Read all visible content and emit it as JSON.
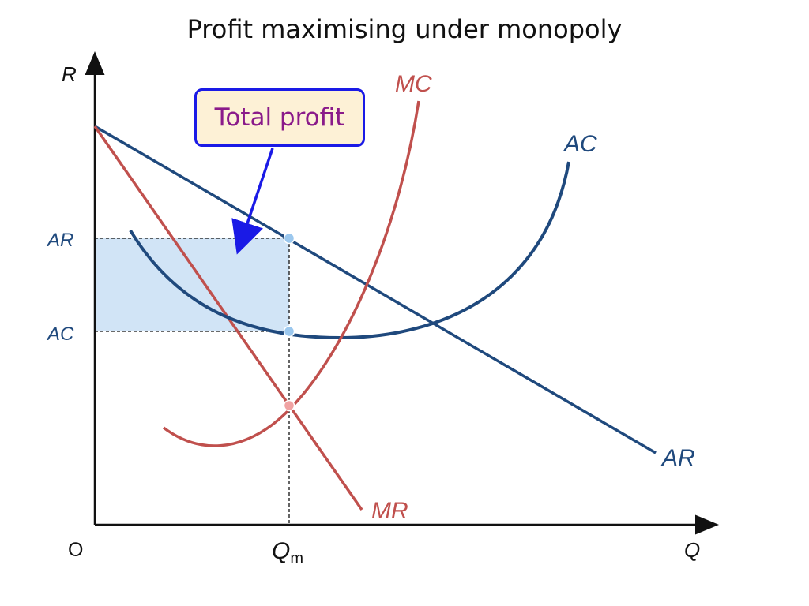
{
  "title": "Profit maximising under monopoly",
  "axes": {
    "y_label": "R",
    "x_label": "Q",
    "origin_label": "O",
    "qm_label_main": "Q",
    "qm_label_sub": "m",
    "ar_tick_label": "AR",
    "ac_tick_label": "AC"
  },
  "curves": {
    "mc_label": "MC",
    "ac_label": "AC",
    "ar_label": "AR",
    "mr_label": "MR"
  },
  "callout": {
    "text": "Total profit"
  },
  "colors": {
    "mc": "#c0504d",
    "mr": "#c0504d",
    "ac": "#1f497d",
    "ar": "#1f497d",
    "profit_fill": "#cfe3f6",
    "callout_border": "#1a1ae6",
    "callout_bg": "#fdf1d6",
    "callout_text": "#8a1a8a",
    "arrow": "#1a1ae6"
  }
}
